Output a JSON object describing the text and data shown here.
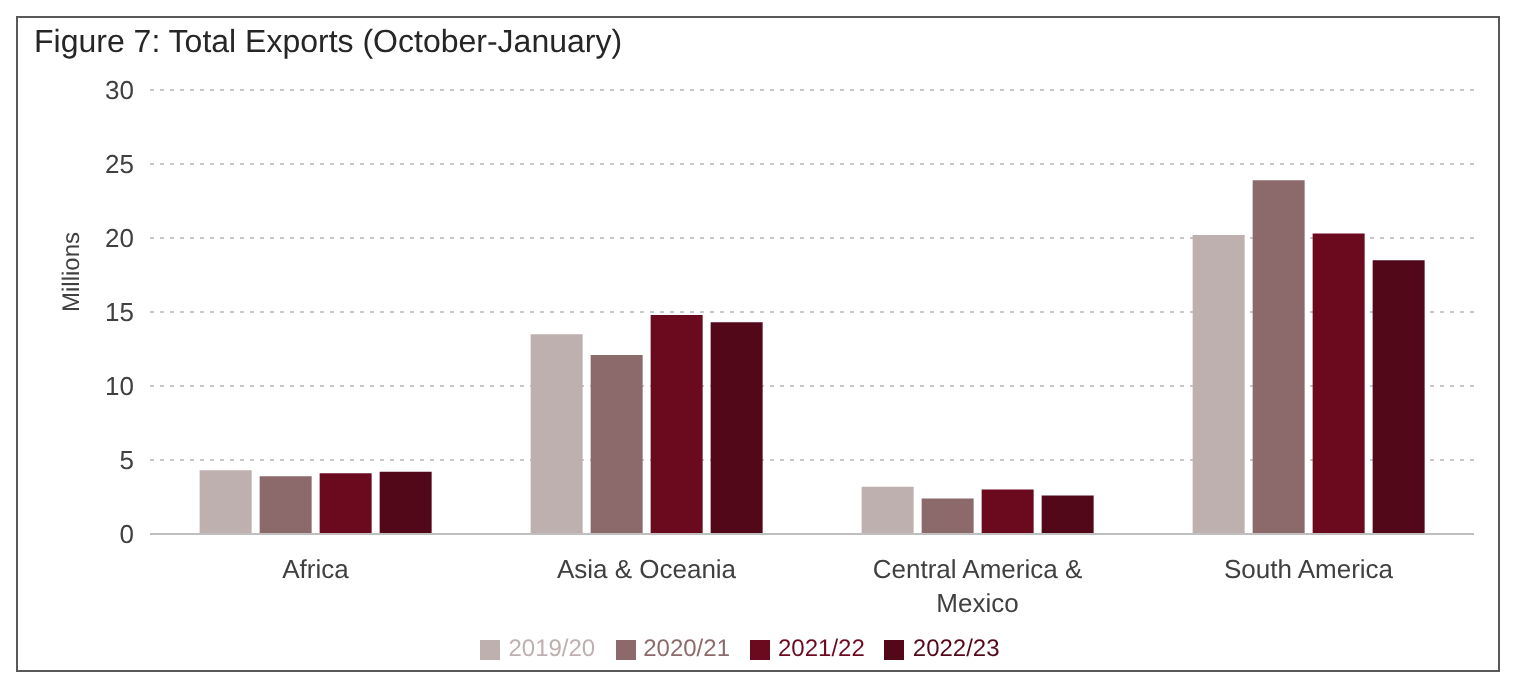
{
  "chart_data": {
    "type": "bar",
    "title": "Figure 7: Total Exports (October-January)",
    "ylabel": "Millions",
    "categories": [
      "Africa",
      "Asia & Oceania",
      "Central America & Mexico",
      "South America"
    ],
    "series": [
      {
        "name": "2019/20",
        "color": "#bdb0af",
        "values": [
          4.3,
          13.5,
          3.2,
          20.2
        ]
      },
      {
        "name": "2020/21",
        "color": "#8c6a6c",
        "values": [
          3.9,
          12.1,
          2.4,
          23.9
        ]
      },
      {
        "name": "2021/22",
        "color": "#6b0a1f",
        "values": [
          4.1,
          14.8,
          3.0,
          20.3
        ]
      },
      {
        "name": "2022/23",
        "color": "#53081a",
        "values": [
          4.2,
          14.3,
          2.6,
          18.5
        ]
      }
    ],
    "ylim": [
      0,
      30
    ],
    "yticks": [
      0,
      5,
      10,
      15,
      20,
      25,
      30
    ],
    "grid": "y",
    "legend": "bottom"
  }
}
